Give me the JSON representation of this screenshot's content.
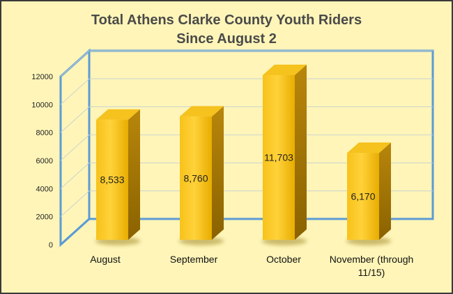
{
  "chart_data": {
    "type": "bar",
    "title_lines": [
      "Total Athens Clarke County Youth Riders",
      "Since August 2"
    ],
    "categories": [
      "August",
      "September",
      "October",
      "November (through 11/15)"
    ],
    "category_lines": [
      [
        "August"
      ],
      [
        "September"
      ],
      [
        "October"
      ],
      [
        "November (through",
        "11/15)"
      ]
    ],
    "values": [
      8533,
      8760,
      11703,
      6170
    ],
    "data_labels": [
      "8,533",
      "8,760",
      "11,703",
      "6,170"
    ],
    "y_ticks": [
      "0",
      "2000",
      "4000",
      "6000",
      "8000",
      "10000",
      "12000"
    ],
    "ylim": [
      0,
      12000
    ],
    "grid": true,
    "legend": "none",
    "bar_color": "#f2b800",
    "frame_color": "#5b9bd5",
    "background": "#fff5b8"
  }
}
